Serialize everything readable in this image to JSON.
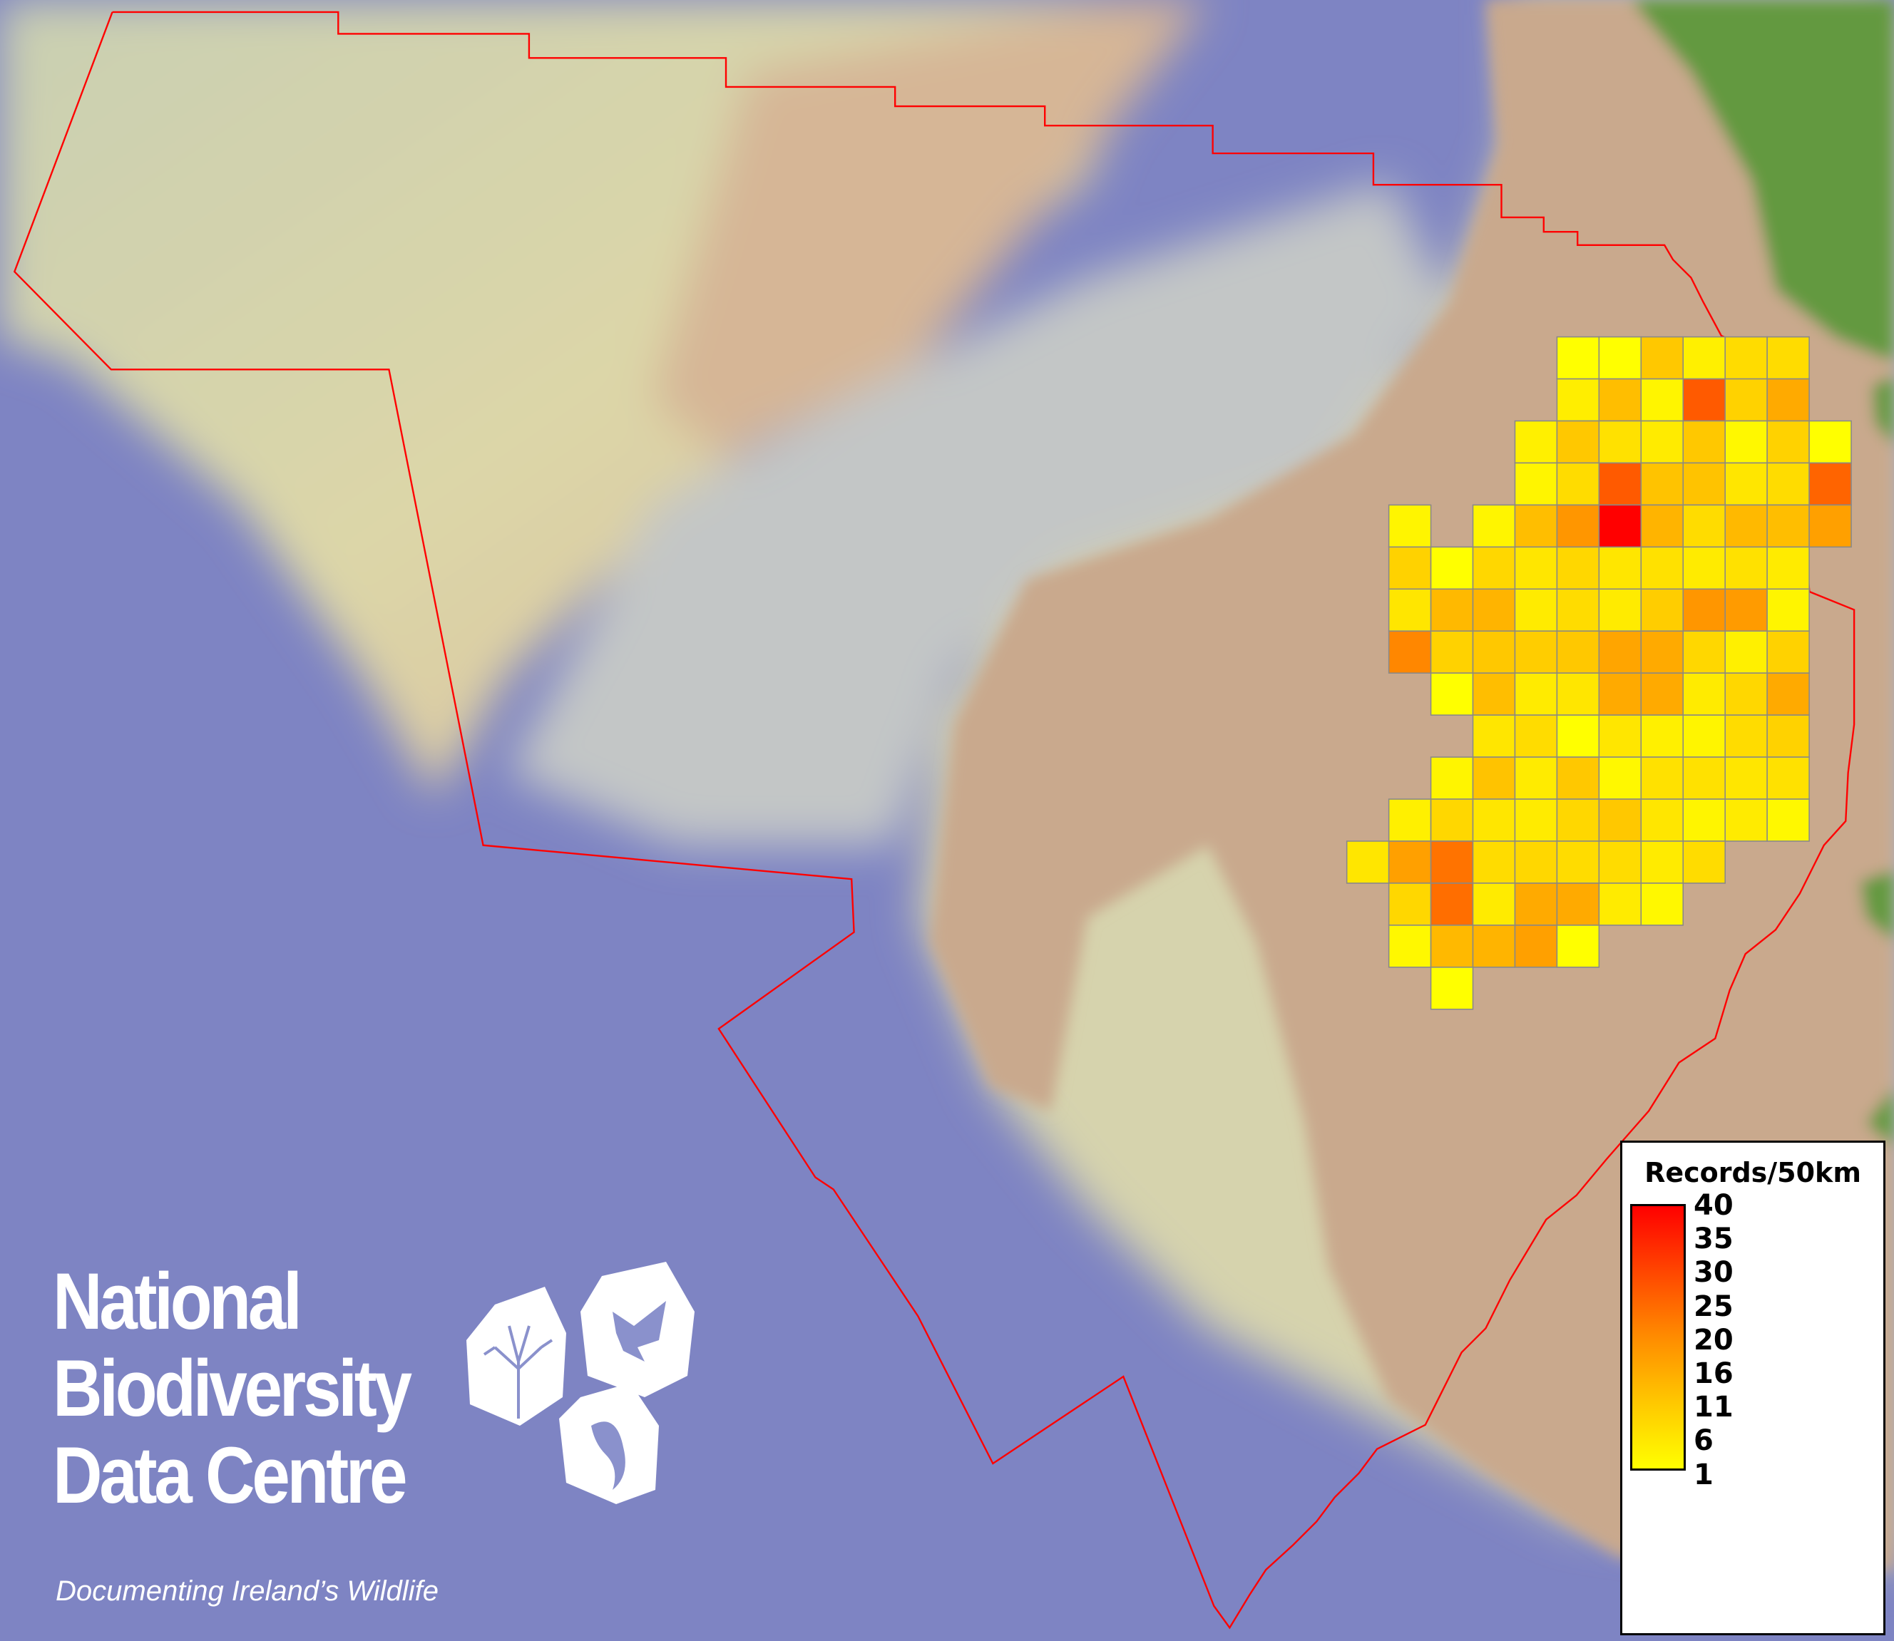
{
  "map": {
    "colors": {
      "sea_deep": "#7d83c2",
      "shelf": "#d9d9ae",
      "slope": "#c4c8c8",
      "land": "#c9a98d",
      "vegetation": "#64993f",
      "boundary": "#ff0000",
      "grid_line": "#888888"
    },
    "grid": {
      "description_rows": "each row lists the first occupied column and cell fill colours",
      "rows": [
        {
          "start": 5,
          "cells": [
            "#ffff00",
            "#ffff00",
            "#ffc800",
            "#fff000",
            "#ffdc00",
            "#ffdc00"
          ]
        },
        {
          "start": 5,
          "cells": [
            "#ffee00",
            "#ffbe00",
            "#fff500",
            "#ff5a00",
            "#ffd200",
            "#ffaa00"
          ]
        },
        {
          "start": 4,
          "cells": [
            "#fff000",
            "#ffc800",
            "#ffe100",
            "#ffeb00",
            "#ffc800",
            "#fff800",
            "#ffd200",
            "#ffff00"
          ]
        },
        {
          "start": 4,
          "cells": [
            "#fff500",
            "#ffdc00",
            "#ff5a00",
            "#ffc300",
            "#ffc300",
            "#ffe600",
            "#ffdc00",
            "#ff6400"
          ]
        },
        {
          "start": 1,
          "cells": [
            "#fff500",
            null,
            "#fff500",
            "#ffbe00",
            "#ff9600",
            "#ff0000",
            "#ffb400",
            "#ffdc00",
            "#ffb900",
            "#ffbe00",
            "#ffa000"
          ]
        },
        {
          "start": 1,
          "cells": [
            "#ffd200",
            "#ffff00",
            "#ffd700",
            "#ffe600",
            "#ffd700",
            "#ffe600",
            "#ffe100",
            "#ffeb00",
            "#ffe100",
            "#ffeb00"
          ]
        },
        {
          "start": 1,
          "cells": [
            "#ffe600",
            "#ffb900",
            "#ffb400",
            "#ffeb00",
            "#ffdc00",
            "#ffeb00",
            "#ffcd00",
            "#ff9600",
            "#ff9b00",
            "#fff500"
          ]
        },
        {
          "start": 1,
          "cells": [
            "#ff8700",
            "#ffd200",
            "#ffc800",
            "#ffcd00",
            "#ffc800",
            "#ffa500",
            "#ffaa00",
            "#ffd700",
            "#fff000",
            "#ffd200"
          ]
        },
        {
          "start": 2,
          "cells": [
            "#ffff00",
            "#ffbe00",
            "#ffeb00",
            "#ffe600",
            "#ffaa00",
            "#ffaa00",
            "#ffeb00",
            "#ffd700",
            "#ffaa00"
          ]
        },
        {
          "start": 3,
          "cells": [
            "#ffe600",
            "#ffdc00",
            "#ffff00",
            "#ffe600",
            "#fff000",
            "#fff500",
            "#ffdc00",
            "#ffd200"
          ]
        },
        {
          "start": 2,
          "cells": [
            "#fff500",
            "#ffc300",
            "#ffeb00",
            "#ffc800",
            "#fff800",
            "#ffe100",
            "#ffe100",
            "#ffe600",
            "#ffe100"
          ]
        },
        {
          "start": 1,
          "cells": [
            "#fff000",
            "#ffd700",
            "#ffe600",
            "#ffeb00",
            "#ffd700",
            "#ffc800",
            "#ffe600",
            "#fff500",
            "#ffeb00",
            "#fff800"
          ]
        },
        {
          "start": 0,
          "cells": [
            "#ffe600",
            "#ffa000",
            "#ff7300",
            "#ffdc00",
            "#ffd700",
            "#ffdc00",
            "#ffdc00",
            "#ffeb00",
            "#ffdc00"
          ]
        },
        {
          "start": 1,
          "cells": [
            "#ffd700",
            "#ff6e00",
            "#ffeb00",
            "#ffaa00",
            "#ffaa00",
            "#ffeb00",
            "#fff800"
          ]
        },
        {
          "start": 1,
          "cells": [
            "#fff800",
            "#ffb900",
            "#ffb400",
            "#ffa000",
            "#ffff00"
          ]
        },
        {
          "start": 2,
          "cells": [
            "#ffff00"
          ]
        }
      ]
    }
  },
  "legend": {
    "title": "Records/50km",
    "ticks": [
      "40",
      "35",
      "30",
      "25",
      "20",
      "16",
      "11",
      "6",
      "1"
    ],
    "color_min": "#ffff00",
    "color_max": "#ff0000"
  },
  "logo": {
    "line1": "National",
    "line2": "Biodiversity",
    "line3": "Data Centre",
    "tagline": "Documenting Ireland’s Wildlife",
    "icons": [
      "tree-icon",
      "butterfly-icon",
      "seahorse-icon"
    ]
  }
}
